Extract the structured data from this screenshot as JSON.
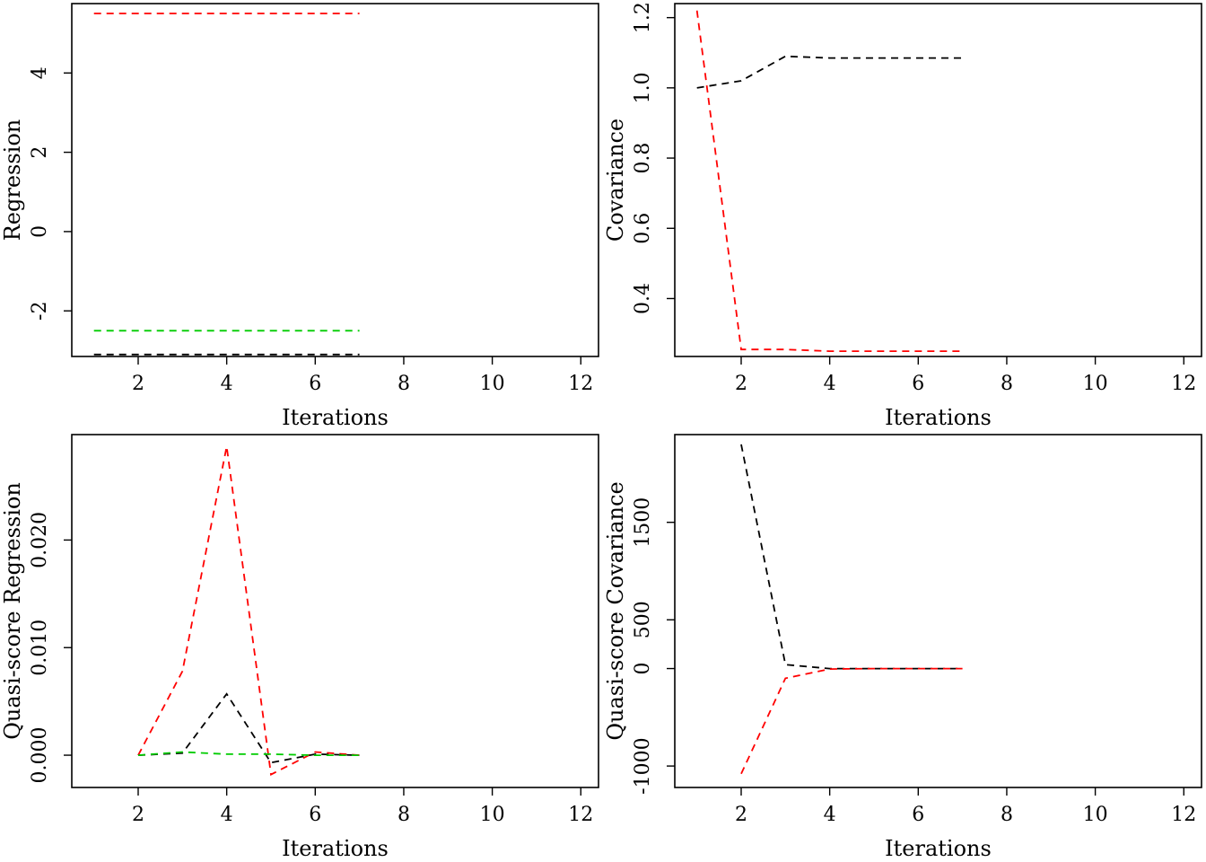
{
  "chart_data": [
    {
      "type": "line",
      "xlabel": "Iterations",
      "ylabel": "Regression",
      "xlim": [
        0.5,
        12.4
      ],
      "ylim": [
        -3.15,
        5.75
      ],
      "xticks": [
        2,
        4,
        6,
        8,
        10,
        12
      ],
      "yticks": [
        -2,
        0,
        2,
        4
      ],
      "grid": false,
      "series": [
        {
          "color": "#ff0000",
          "x": [
            1,
            2,
            3,
            4,
            5,
            6,
            7
          ],
          "values": [
            5.5,
            5.5,
            5.5,
            5.5,
            5.5,
            5.5,
            5.5
          ]
        },
        {
          "color": "#00cc00",
          "x": [
            1,
            2,
            3,
            4,
            5,
            6,
            7
          ],
          "values": [
            -2.5,
            -2.5,
            -2.5,
            -2.5,
            -2.5,
            -2.5,
            -2.5
          ]
        },
        {
          "color": "#000000",
          "x": [
            1,
            2,
            3,
            4,
            5,
            6,
            7
          ],
          "values": [
            -3.1,
            -3.1,
            -3.1,
            -3.1,
            -3.1,
            -3.1,
            -3.1
          ]
        }
      ]
    },
    {
      "type": "line",
      "xlabel": "Iterations",
      "ylabel": "Covariance",
      "xlim": [
        0.5,
        12.4
      ],
      "ylim": [
        0.235,
        1.24
      ],
      "xticks": [
        2,
        4,
        6,
        8,
        10,
        12
      ],
      "yticks": [
        0.4,
        0.6,
        0.8,
        1.0,
        1.2
      ],
      "ytick_labels": [
        "0.4",
        "0.6",
        "0.8",
        "1.0",
        "1.2"
      ],
      "grid": false,
      "series": [
        {
          "color": "#000000",
          "x": [
            1,
            2,
            3,
            4,
            5,
            6,
            7
          ],
          "values": [
            1.0,
            1.02,
            1.09,
            1.085,
            1.085,
            1.085,
            1.085
          ]
        },
        {
          "color": "#ff0000",
          "x": [
            1,
            2,
            3,
            4,
            5,
            6,
            7
          ],
          "values": [
            1.22,
            0.255,
            0.255,
            0.25,
            0.25,
            0.25,
            0.25
          ]
        }
      ]
    },
    {
      "type": "line",
      "xlabel": "Iterations",
      "ylabel": "Quasi-score Regression",
      "xlim": [
        0.5,
        12.4
      ],
      "ylim": [
        -0.003,
        0.0298
      ],
      "xticks": [
        2,
        4,
        6,
        8,
        10,
        12
      ],
      "yticks": [
        0.0,
        0.01,
        0.02
      ],
      "ytick_labels": [
        "0.000",
        "0.010",
        "0.020"
      ],
      "grid": false,
      "series": [
        {
          "color": "#ff0000",
          "x": [
            2,
            3,
            4,
            5,
            6,
            7
          ],
          "values": [
            0.0,
            0.0078,
            0.0287,
            -0.0018,
            0.0003,
            0.0
          ]
        },
        {
          "color": "#000000",
          "x": [
            2,
            3,
            4,
            5,
            6,
            7
          ],
          "values": [
            0.0,
            0.0002,
            0.0057,
            -0.0007,
            0.0001,
            0.0
          ]
        },
        {
          "color": "#00cc00",
          "x": [
            2,
            3,
            4,
            5,
            6,
            7
          ],
          "values": [
            0.0,
            0.0003,
            0.0001,
            0.0001,
            0.0,
            0.0
          ]
        }
      ]
    },
    {
      "type": "line",
      "xlabel": "Iterations",
      "ylabel": "Quasi-score Covariance",
      "xlim": [
        0.5,
        12.4
      ],
      "ylim": [
        -1220,
        2400
      ],
      "xticks": [
        2,
        4,
        6,
        8,
        10,
        12
      ],
      "yticks": [
        -1000,
        0,
        500,
        1500
      ],
      "ytick_labels": [
        "-1000",
        "0",
        "500",
        "1500"
      ],
      "grid": false,
      "series": [
        {
          "color": "#000000",
          "x": [
            2,
            3,
            4,
            5,
            6,
            7
          ],
          "values": [
            2300,
            40,
            0,
            0,
            0,
            0
          ]
        },
        {
          "color": "#ff0000",
          "x": [
            2,
            3,
            4,
            5,
            6,
            7
          ],
          "values": [
            -1080,
            -100,
            -5,
            0,
            0,
            0
          ]
        }
      ]
    }
  ]
}
